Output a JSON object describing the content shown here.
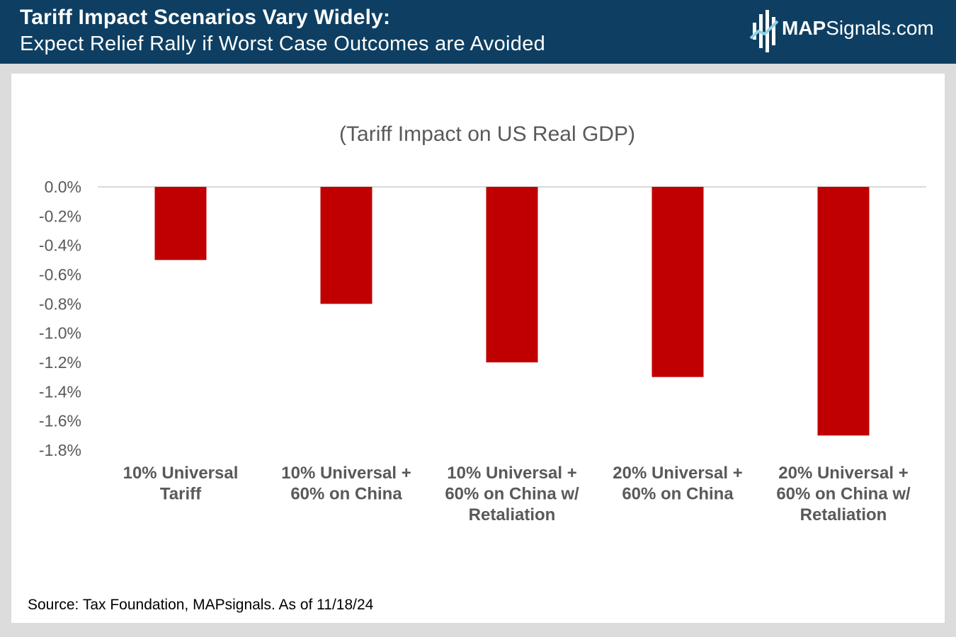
{
  "header": {
    "title": "Tariff Impact Scenarios Vary Widely:",
    "subtitle": "Expect Relief Rally if Worst Case Outcomes are Avoided",
    "logo": {
      "bold": "MAP",
      "rest": "Signals.com",
      "icon": "map-signals-logo-icon"
    }
  },
  "colors": {
    "header_bg": "#0e3f62",
    "bar": "#c00000",
    "axis_text": "#595959",
    "page_bg": "#dcdcdc"
  },
  "chart_data": {
    "type": "bar",
    "title": "(Tariff Impact on US Real GDP)",
    "xlabel": "",
    "ylabel": "",
    "ylim": [
      -1.8,
      0
    ],
    "yticks": [
      0.0,
      -0.2,
      -0.4,
      -0.6,
      -0.8,
      -1.0,
      -1.2,
      -1.4,
      -1.6,
      -1.8
    ],
    "ytick_labels": [
      "0.0%",
      "-0.2%",
      "-0.4%",
      "-0.6%",
      "-0.8%",
      "-1.0%",
      "-1.2%",
      "-1.4%",
      "-1.6%",
      "-1.8%"
    ],
    "categories": [
      [
        "10% Universal",
        "Tariff"
      ],
      [
        "10% Universal +",
        "60% on China"
      ],
      [
        "10% Universal +",
        "60% on China w/",
        "Retaliation"
      ],
      [
        "20% Universal +",
        "60% on China"
      ],
      [
        "20% Universal +",
        "60% on China w/",
        "Retaliation"
      ]
    ],
    "values": [
      -0.5,
      -0.8,
      -1.2,
      -1.3,
      -1.7
    ],
    "unit": "%",
    "grid": false
  },
  "source": "Source: Tax Foundation, MAPsignals. As of 11/18/24"
}
